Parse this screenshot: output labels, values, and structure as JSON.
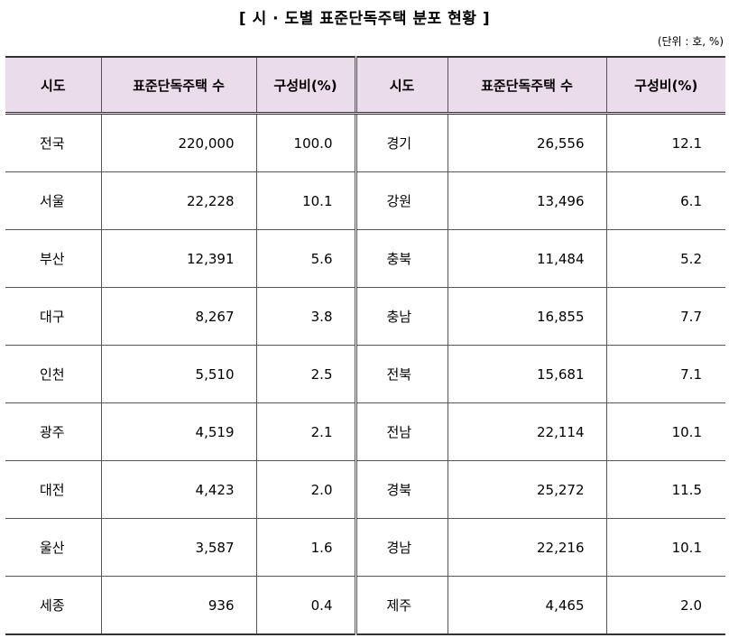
{
  "title": "[ 시 · 도별  표준단독주택  분포  현황 ]",
  "unit": "(단위 : 호, %)",
  "headers": [
    "시도",
    "표준단독주택 수",
    "구성비(%)",
    "시도",
    "표준단독주택 수",
    "구성비(%)"
  ],
  "rows": [
    {
      "left": {
        "region": "전국",
        "count": "220,000",
        "ratio": "100.0"
      },
      "right": {
        "region": "경기",
        "count": "26,556",
        "ratio": "12.1"
      }
    },
    {
      "left": {
        "region": "서울",
        "count": "22,228",
        "ratio": "10.1"
      },
      "right": {
        "region": "강원",
        "count": "13,496",
        "ratio": "6.1"
      }
    },
    {
      "left": {
        "region": "부산",
        "count": "12,391",
        "ratio": "5.6"
      },
      "right": {
        "region": "충북",
        "count": "11,484",
        "ratio": "5.2"
      }
    },
    {
      "left": {
        "region": "대구",
        "count": "8,267",
        "ratio": "3.8"
      },
      "right": {
        "region": "충남",
        "count": "16,855",
        "ratio": "7.7"
      }
    },
    {
      "left": {
        "region": "인천",
        "count": "5,510",
        "ratio": "2.5"
      },
      "right": {
        "region": "전북",
        "count": "15,681",
        "ratio": "7.1"
      }
    },
    {
      "left": {
        "region": "광주",
        "count": "4,519",
        "ratio": "2.1"
      },
      "right": {
        "region": "전남",
        "count": "22,114",
        "ratio": "10.1"
      }
    },
    {
      "left": {
        "region": "대전",
        "count": "4,423",
        "ratio": "2.0"
      },
      "right": {
        "region": "경북",
        "count": "25,272",
        "ratio": "11.5"
      }
    },
    {
      "left": {
        "region": "울산",
        "count": "3,587",
        "ratio": "1.6"
      },
      "right": {
        "region": "경남",
        "count": "22,216",
        "ratio": "10.1"
      }
    },
    {
      "left": {
        "region": "세종",
        "count": "936",
        "ratio": "0.4"
      },
      "right": {
        "region": "제주",
        "count": "4,465",
        "ratio": "2.0"
      }
    }
  ]
}
